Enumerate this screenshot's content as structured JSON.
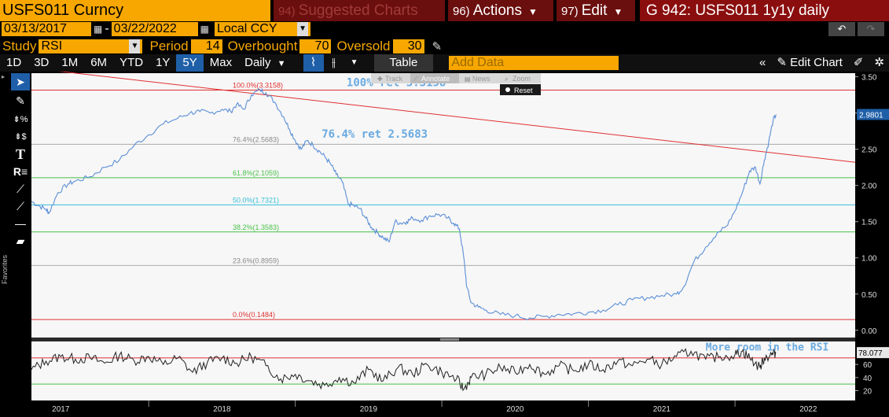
{
  "header": {
    "ticker": "USFS011 Curncy",
    "menus": [
      {
        "num": "94)",
        "label": "Suggested Charts"
      },
      {
        "num": "96)",
        "label": "Actions"
      },
      {
        "num": "97)",
        "label": "Edit"
      }
    ],
    "graph_title": "G 942: USFS011 1y1y daily"
  },
  "controls": {
    "date_start": "03/13/2017",
    "date_sep": "-",
    "date_end": "03/22/2022",
    "currency": "Local CCY",
    "study_label": "Study",
    "study_value": "RSI",
    "period_label": "Period",
    "period_value": "14",
    "overbought_label": "Overbought",
    "overbought_value": "70",
    "oversold_label": "Oversold",
    "oversold_value": "30"
  },
  "toolbar": {
    "periods": [
      "1D",
      "3D",
      "1M",
      "6M",
      "YTD",
      "1Y",
      "5Y",
      "Max"
    ],
    "selected_period": "5Y",
    "frequency": "Daily",
    "table_label": "Table",
    "add_data_placeholder": "Add Data",
    "edit_chart_label": "Edit Chart"
  },
  "hover_toolbar": {
    "items": [
      "Track",
      "Annotate",
      "News",
      "Zoom"
    ],
    "reset_label": "Reset"
  },
  "icons": {
    "left_toolbar": [
      "cursor-icon",
      "pen-icon",
      "percent-marker-icon",
      "dollar-marker-icon",
      "text-icon",
      "r-annotation-icon",
      "trendline-icon",
      "segment-icon",
      "horizontal-line-icon",
      "eraser-icon"
    ],
    "favorites_label": "Favorites"
  },
  "chart_data": {
    "type": "line",
    "main": {
      "ylim": [
        -0.1,
        3.55
      ],
      "yticks": [
        {
          "v": 0,
          "label": "0.00"
        },
        {
          "v": 0.5,
          "label": "0.50"
        },
        {
          "v": 1.0,
          "label": "1.00"
        },
        {
          "v": 1.5,
          "label": "1.50"
        },
        {
          "v": 2.0,
          "label": "2.00"
        },
        {
          "v": 2.5,
          "label": "2.50"
        },
        {
          "v": 3.0,
          "label": "3.00"
        },
        {
          "v": 3.5,
          "label": "3.50"
        }
      ],
      "last_value": "2.9801",
      "series": [
        {
          "color": "#5b8fd6",
          "points": [
            [
              2017.2,
              1.78
            ],
            [
              2017.25,
              1.72
            ],
            [
              2017.3,
              1.67
            ],
            [
              2017.32,
              1.62
            ],
            [
              2017.38,
              1.9
            ],
            [
              2017.45,
              2.02
            ],
            [
              2017.5,
              2.06
            ],
            [
              2017.6,
              2.12
            ],
            [
              2017.7,
              2.25
            ],
            [
              2017.8,
              2.35
            ],
            [
              2017.9,
              2.55
            ],
            [
              2018.0,
              2.7
            ],
            [
              2018.1,
              2.85
            ],
            [
              2018.2,
              2.93
            ],
            [
              2018.28,
              3.0
            ],
            [
              2018.35,
              3.02
            ],
            [
              2018.42,
              3.0
            ],
            [
              2018.5,
              3.05
            ],
            [
              2018.56,
              3.02
            ],
            [
              2018.6,
              3.12
            ],
            [
              2018.65,
              3.05
            ],
            [
              2018.7,
              3.25
            ],
            [
              2018.76,
              3.32
            ],
            [
              2018.8,
              3.28
            ],
            [
              2018.86,
              3.15
            ],
            [
              2018.92,
              2.95
            ],
            [
              2018.96,
              2.78
            ],
            [
              2019.0,
              2.62
            ],
            [
              2019.04,
              2.5
            ],
            [
              2019.08,
              2.62
            ],
            [
              2019.12,
              2.56
            ],
            [
              2019.16,
              2.48
            ],
            [
              2019.2,
              2.4
            ],
            [
              2019.24,
              2.3
            ],
            [
              2019.28,
              2.15
            ],
            [
              2019.32,
              2.05
            ],
            [
              2019.36,
              1.75
            ],
            [
              2019.4,
              1.72
            ],
            [
              2019.44,
              1.68
            ],
            [
              2019.48,
              1.55
            ],
            [
              2019.52,
              1.42
            ],
            [
              2019.56,
              1.35
            ],
            [
              2019.6,
              1.28
            ],
            [
              2019.64,
              1.22
            ],
            [
              2019.68,
              1.5
            ],
            [
              2019.72,
              1.48
            ],
            [
              2019.76,
              1.5
            ],
            [
              2019.8,
              1.55
            ],
            [
              2019.86,
              1.52
            ],
            [
              2019.92,
              1.58
            ],
            [
              2019.98,
              1.6
            ],
            [
              2020.04,
              1.55
            ],
            [
              2020.08,
              1.48
            ],
            [
              2020.12,
              1.4
            ],
            [
              2020.15,
              1.0
            ],
            [
              2020.17,
              0.6
            ],
            [
              2020.2,
              0.38
            ],
            [
              2020.25,
              0.32
            ],
            [
              2020.3,
              0.28
            ],
            [
              2020.4,
              0.22
            ],
            [
              2020.5,
              0.2
            ],
            [
              2020.6,
              0.17
            ],
            [
              2020.7,
              0.19
            ],
            [
              2020.8,
              0.22
            ],
            [
              2020.9,
              0.23
            ],
            [
              2021.0,
              0.25
            ],
            [
              2021.1,
              0.28
            ],
            [
              2021.2,
              0.35
            ],
            [
              2021.3,
              0.42
            ],
            [
              2021.4,
              0.45
            ],
            [
              2021.5,
              0.48
            ],
            [
              2021.6,
              0.5
            ],
            [
              2021.65,
              0.6
            ],
            [
              2021.72,
              0.95
            ],
            [
              2021.8,
              1.15
            ],
            [
              2021.88,
              1.35
            ],
            [
              2021.95,
              1.45
            ],
            [
              2022.0,
              1.65
            ],
            [
              2022.05,
              1.9
            ],
            [
              2022.1,
              2.2
            ],
            [
              2022.14,
              2.25
            ],
            [
              2022.17,
              2.02
            ],
            [
              2022.2,
              2.35
            ],
            [
              2022.23,
              2.6
            ],
            [
              2022.26,
              2.9
            ],
            [
              2022.28,
              2.98
            ]
          ]
        }
      ],
      "trendline": {
        "color": "#e03030",
        "from": [
          2017.2,
          3.62
        ],
        "to": [
          2022.82,
          2.32
        ]
      },
      "fib_levels": [
        {
          "label": "100.0%(3.3158)",
          "value": 3.3158,
          "color": "#e03030"
        },
        {
          "label": "76.4%(2.5683)",
          "value": 2.5683,
          "color": "#aaaaaa"
        },
        {
          "label": "61.8%(2.1059)",
          "value": 2.1059,
          "color": "#49c049"
        },
        {
          "label": "50.0%(1.7321)",
          "value": 1.7321,
          "color": "#35c0d8"
        },
        {
          "label": "38.2%(1.3583)",
          "value": 1.3583,
          "color": "#49c049"
        },
        {
          "label": "23.6%(0.8959)",
          "value": 0.8959,
          "color": "#aaaaaa"
        },
        {
          "label": "0.0%(0.1484)",
          "value": 0.1484,
          "color": "#e03030"
        }
      ],
      "annotations": [
        {
          "text": "100% ret 3.3158",
          "x": 2019.35,
          "y": 3.37
        },
        {
          "text": "76.4% ret 2.5683",
          "x": 2019.18,
          "y": 2.66
        }
      ]
    },
    "rsi": {
      "ylim": [
        5,
        95
      ],
      "yticks": [
        {
          "v": 20,
          "label": "20"
        },
        {
          "v": 40,
          "label": "40"
        },
        {
          "v": 60,
          "label": "60"
        }
      ],
      "overbought": 70,
      "oversold": 30,
      "last_value": "78.077",
      "annotation": {
        "text": "More room in the RSI",
        "x": 2021.8,
        "y": 86
      },
      "points": [
        [
          2017.2,
          52
        ],
        [
          2017.3,
          65
        ],
        [
          2017.4,
          72
        ],
        [
          2017.5,
          68
        ],
        [
          2017.6,
          70
        ],
        [
          2017.7,
          62
        ],
        [
          2017.8,
          74
        ],
        [
          2017.9,
          66
        ],
        [
          2018.0,
          72
        ],
        [
          2018.1,
          60
        ],
        [
          2018.2,
          70
        ],
        [
          2018.3,
          48
        ],
        [
          2018.4,
          63
        ],
        [
          2018.5,
          70
        ],
        [
          2018.6,
          62
        ],
        [
          2018.7,
          72
        ],
        [
          2018.8,
          58
        ],
        [
          2018.9,
          38
        ],
        [
          2019.0,
          45
        ],
        [
          2019.1,
          35
        ],
        [
          2019.2,
          28
        ],
        [
          2019.3,
          40
        ],
        [
          2019.4,
          32
        ],
        [
          2019.5,
          52
        ],
        [
          2019.6,
          35
        ],
        [
          2019.7,
          55
        ],
        [
          2019.8,
          45
        ],
        [
          2019.9,
          60
        ],
        [
          2020.0,
          48
        ],
        [
          2020.1,
          38
        ],
        [
          2020.15,
          22
        ],
        [
          2020.2,
          40
        ],
        [
          2020.3,
          45
        ],
        [
          2020.4,
          55
        ],
        [
          2020.5,
          48
        ],
        [
          2020.6,
          60
        ],
        [
          2020.7,
          45
        ],
        [
          2020.8,
          58
        ],
        [
          2020.9,
          50
        ],
        [
          2021.0,
          60
        ],
        [
          2021.1,
          52
        ],
        [
          2021.2,
          65
        ],
        [
          2021.3,
          58
        ],
        [
          2021.4,
          68
        ],
        [
          2021.5,
          60
        ],
        [
          2021.6,
          72
        ],
        [
          2021.7,
          80
        ],
        [
          2021.8,
          68
        ],
        [
          2021.9,
          72
        ],
        [
          2022.0,
          75
        ],
        [
          2022.05,
          80
        ],
        [
          2022.1,
          70
        ],
        [
          2022.17,
          55
        ],
        [
          2022.2,
          70
        ],
        [
          2022.25,
          75
        ],
        [
          2022.28,
          78
        ]
      ]
    },
    "x_axis": {
      "xlim": [
        2017.2,
        2022.82
      ],
      "year_labels": [
        {
          "x": 2017.4,
          "label": "2017"
        },
        {
          "x": 2018.5,
          "label": "2018"
        },
        {
          "x": 2019.5,
          "label": "2019"
        },
        {
          "x": 2020.5,
          "label": "2020"
        },
        {
          "x": 2021.5,
          "label": "2021"
        },
        {
          "x": 2022.5,
          "label": "2022"
        }
      ],
      "year_boundaries": [
        2018.0,
        2019.0,
        2020.0,
        2021.0,
        2022.0
      ]
    }
  }
}
